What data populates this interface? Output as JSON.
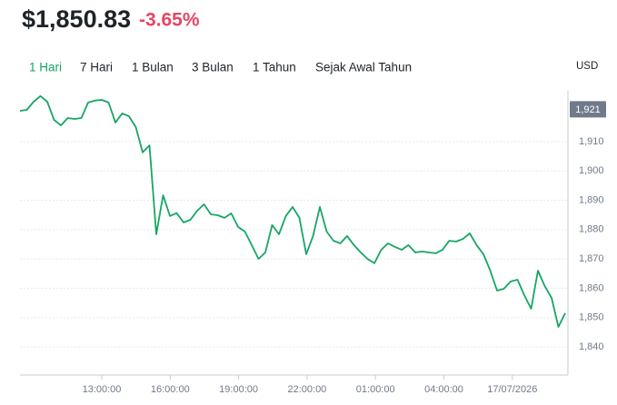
{
  "header": {
    "price": "$1,850.83",
    "change": "-3.65%"
  },
  "tabs": [
    "1 Hari",
    "7 Hari",
    "1 Bulan",
    "3 Bulan",
    "1 Tahun",
    "Sejak Awal Tahun"
  ],
  "currency": "USD",
  "chart_data": {
    "type": "line",
    "series": [
      {
        "color": "#16a664",
        "values": [
          1920.5,
          1920.8,
          1923.6,
          1925.5,
          1923.6,
          1917.4,
          1915.5,
          1918,
          1917.7,
          1918,
          1923.3,
          1924,
          1924.2,
          1923.3,
          1916.5,
          1919.6,
          1918.6,
          1914.9,
          1906.3,
          1908.7,
          1878.4,
          1891.7,
          1884.6,
          1885.6,
          1882.4,
          1883.3,
          1886.4,
          1888.6,
          1885.2,
          1884.9,
          1884,
          1885.5,
          1880.9,
          1879.3,
          1874.7,
          1870,
          1872.2,
          1881.5,
          1878.4,
          1884.6,
          1887.7,
          1884,
          1871.6,
          1877.8,
          1887.7,
          1879.3,
          1876.2,
          1875.3,
          1877.8,
          1874.7,
          1872.2,
          1870,
          1868.5,
          1873.1,
          1875.3,
          1874.1,
          1873.1,
          1874.7,
          1872.2,
          1872.5,
          1872.2,
          1871.9,
          1873.1,
          1876.2,
          1875.9,
          1876.8,
          1878.7,
          1874.7,
          1871.6,
          1866,
          1859.2,
          1859.8,
          1862.3,
          1862.9,
          1857.6,
          1853,
          1866,
          1860.7,
          1856.7,
          1846.8,
          1851.5
        ]
      }
    ],
    "x_tick_labels": [
      "13:00:00",
      "16:00:00",
      "19:00:00",
      "22:00:00",
      "01:00:00",
      "04:00:00",
      "17/07/2026"
    ],
    "ylim": [
      1830.4,
      1927.3
    ],
    "yticks": [
      {
        "value": 1840,
        "label": "1,840"
      },
      {
        "value": 1850,
        "label": "1,850"
      },
      {
        "value": 1860,
        "label": "1,860"
      },
      {
        "value": 1870,
        "label": "1,870"
      },
      {
        "value": 1880,
        "label": "1,880"
      },
      {
        "value": 1890,
        "label": "1,890"
      },
      {
        "value": 1900,
        "label": "1,900"
      },
      {
        "value": 1910,
        "label": "1,910"
      }
    ],
    "marker": {
      "value": 1921,
      "label": "1,921"
    },
    "grid": true
  }
}
